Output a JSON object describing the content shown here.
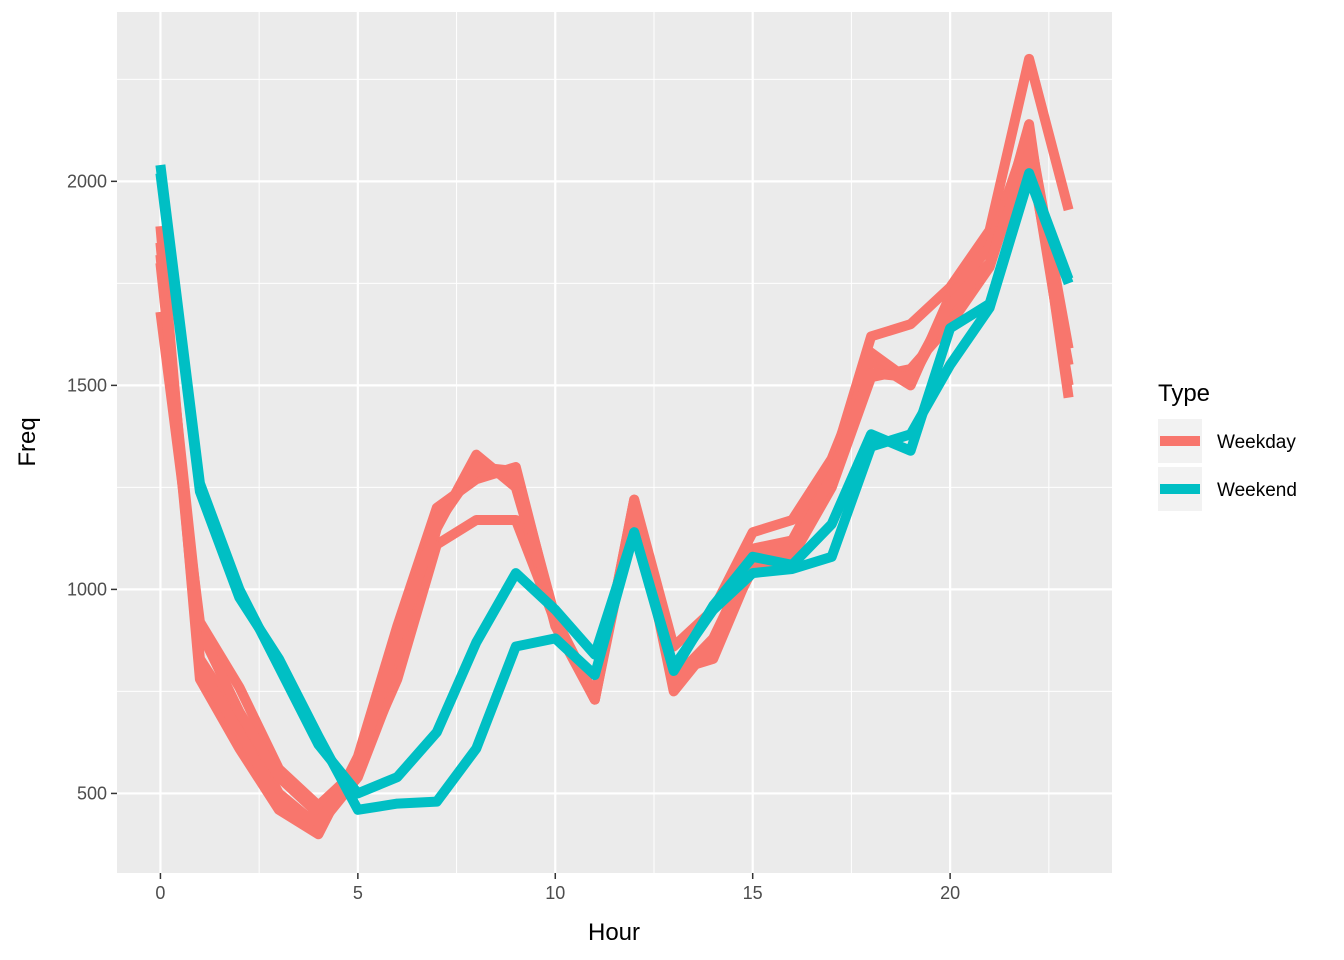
{
  "chart_data": {
    "type": "line",
    "xlabel": "Hour",
    "ylabel": "Freq",
    "xlim": [
      -1.1,
      24.1
    ],
    "ylim": [
      305,
      2415
    ],
    "x_ticks": [
      0,
      5,
      10,
      15,
      20
    ],
    "y_ticks": [
      500,
      1000,
      1500,
      2000
    ],
    "grid": true,
    "legend": {
      "title": "Type",
      "position": "right",
      "entries": [
        {
          "name": "Weekday",
          "color": "#F8766D"
        },
        {
          "name": "Weekend",
          "color": "#00BFC4"
        }
      ]
    },
    "series": [
      {
        "type": "Weekday",
        "color": "#F8766D",
        "x": [
          0,
          1,
          2,
          3,
          4,
          5,
          6,
          7,
          8,
          9,
          10,
          11,
          12,
          13,
          14,
          15,
          16,
          17,
          18,
          19,
          20,
          21,
          22,
          23
        ],
        "values": [
          1680,
          920,
          760,
          560,
          470,
          560,
          780,
          1110,
          1170,
          1170,
          920,
          730,
          1220,
          750,
          870,
          1100,
          1120,
          1300,
          1620,
          1650,
          1740,
          1880,
          2300,
          1930
        ]
      },
      {
        "type": "Weekday",
        "color": "#F8766D",
        "x": [
          0,
          1,
          2,
          3,
          4,
          5,
          6,
          7,
          8,
          9,
          10,
          11,
          12,
          13,
          14,
          15,
          16,
          17,
          18,
          19,
          20,
          21,
          22,
          23
        ],
        "values": [
          1890,
          780,
          610,
          460,
          400,
          590,
          910,
          1200,
          1270,
          1300,
          920,
          730,
          1220,
          860,
          950,
          1140,
          1170,
          1320,
          1560,
          1500,
          1720,
          1840,
          2120,
          1590
        ]
      },
      {
        "type": "Weekday",
        "color": "#F8766D",
        "x": [
          0,
          1,
          2,
          3,
          4,
          5,
          6,
          7,
          8,
          9,
          10,
          11,
          12,
          13,
          14,
          15,
          16,
          17,
          18,
          19,
          20,
          21,
          22,
          23
        ],
        "values": [
          1850,
          830,
          680,
          500,
          420,
          540,
          790,
          1150,
          1330,
          1250,
          920,
          740,
          1200,
          800,
          830,
          1060,
          1080,
          1250,
          1520,
          1540,
          1650,
          1790,
          2090,
          1500
        ]
      },
      {
        "type": "Weekday",
        "color": "#F8766D",
        "x": [
          0,
          1,
          2,
          3,
          4,
          5,
          6,
          7,
          8,
          9,
          10,
          11,
          12,
          13,
          14,
          15,
          16,
          17,
          18,
          19,
          20,
          21,
          22,
          23
        ],
        "values": [
          1800,
          900,
          700,
          540,
          450,
          570,
          850,
          1180,
          1290,
          1280,
          910,
          730,
          1200,
          780,
          880,
          1080,
          1100,
          1270,
          1580,
          1510,
          1690,
          1790,
          2140,
          1470
        ]
      },
      {
        "type": "Weekday",
        "color": "#F8766D",
        "x": [
          0,
          1,
          2,
          3,
          4,
          5,
          6,
          7,
          8,
          9,
          10,
          11,
          12,
          13,
          14,
          15,
          16,
          17,
          18,
          19,
          20,
          21,
          22,
          23
        ],
        "values": [
          1820,
          810,
          650,
          480,
          430,
          560,
          880,
          1160,
          1300,
          1290,
          930,
          740,
          1210,
          770,
          860,
          1050,
          1090,
          1280,
          1530,
          1520,
          1700,
          1800,
          2070,
          1550
        ]
      },
      {
        "type": "Weekend",
        "color": "#00BFC4",
        "x": [
          0,
          1,
          2,
          3,
          4,
          5,
          6,
          7,
          8,
          9,
          10,
          11,
          12,
          13,
          14,
          15,
          16,
          17,
          18,
          19,
          20,
          21,
          22,
          23
        ],
        "values": [
          2040,
          1260,
          1000,
          810,
          620,
          500,
          540,
          650,
          870,
          1040,
          950,
          840,
          1140,
          800,
          960,
          1080,
          1060,
          1160,
          1380,
          1340,
          1640,
          1700,
          2020,
          1760
        ]
      },
      {
        "type": "Weekend",
        "color": "#00BFC4",
        "x": [
          0,
          1,
          2,
          3,
          4,
          5,
          6,
          7,
          8,
          9,
          10,
          11,
          12,
          13,
          14,
          15,
          16,
          17,
          18,
          19,
          20,
          21,
          22,
          23
        ],
        "values": [
          2020,
          1240,
          980,
          830,
          640,
          460,
          475,
          480,
          610,
          860,
          880,
          790,
          1140,
          810,
          950,
          1040,
          1050,
          1080,
          1350,
          1380,
          1550,
          1690,
          2010,
          1750
        ]
      }
    ]
  }
}
